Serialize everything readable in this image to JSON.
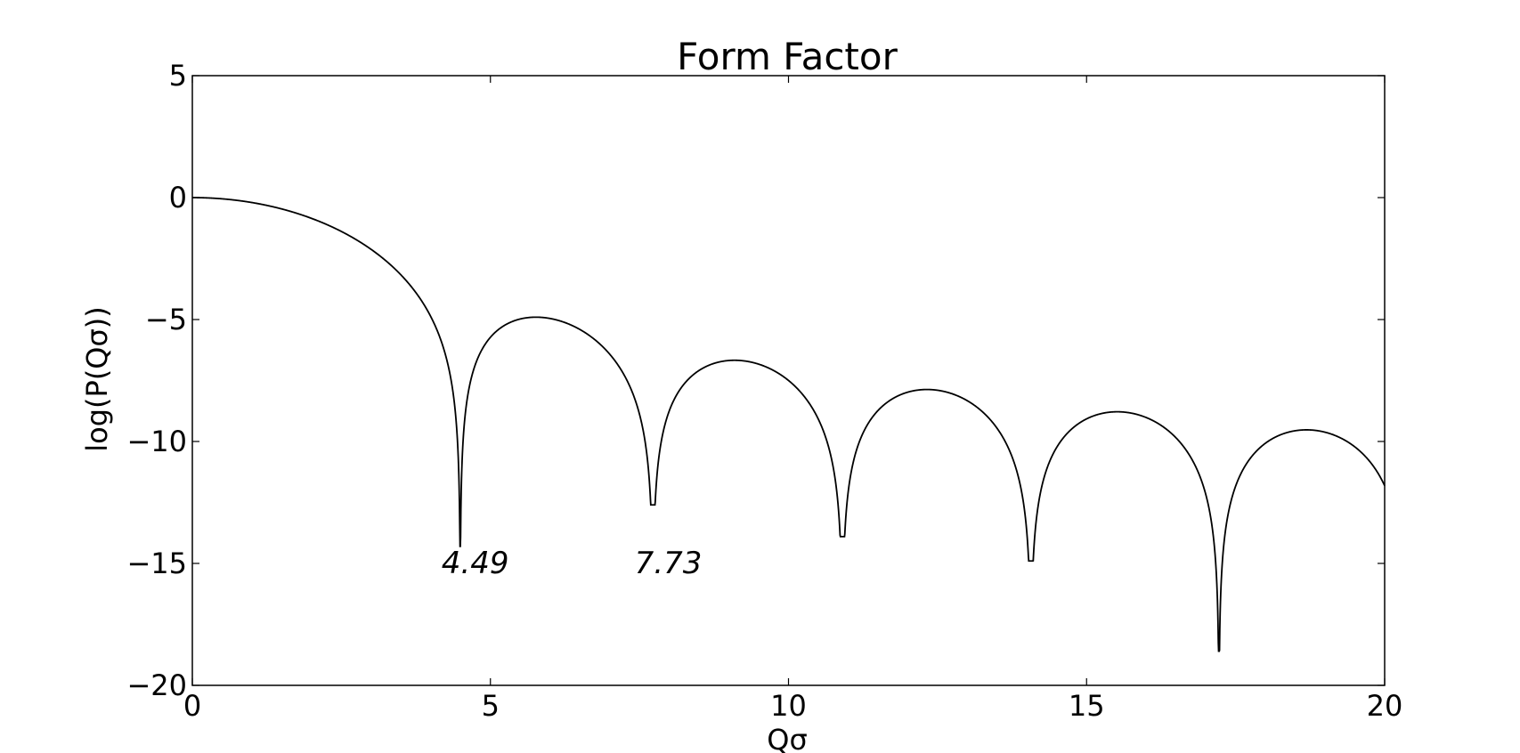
{
  "chart_data": {
    "type": "line",
    "title": "Form Factor",
    "xlabel": "Qσ",
    "ylabel": "log(P(Qσ))",
    "xlim": [
      0,
      20
    ],
    "ylim": [
      -20,
      5
    ],
    "grid": false,
    "xticks": [
      0,
      5,
      10,
      15,
      20
    ],
    "xtick_labels": [
      "0",
      "5",
      "10",
      "15",
      "20"
    ],
    "yticks": [
      5,
      0,
      -5,
      -10,
      -15,
      -20
    ],
    "ytick_labels": [
      "5",
      "0",
      "−5",
      "−10",
      "−15",
      "−20"
    ],
    "series": [
      {
        "function": "log(9 * (sin(x) - x*cos(x))^2 / x^6)",
        "x_range": [
          0,
          20
        ],
        "color": "#000000",
        "minima": [
          {
            "x": 4.49,
            "y": -14.3
          },
          {
            "x": 7.73,
            "y": -12.6
          },
          {
            "x": 10.9,
            "y": -13.9
          },
          {
            "x": 14.07,
            "y": -14.9
          },
          {
            "x": 17.22,
            "y": -18.6
          }
        ]
      }
    ],
    "annotations": [
      {
        "text": "4.49",
        "x": 4.49,
        "y": -15
      },
      {
        "text": "7.73",
        "x": 7.73,
        "y": -15
      }
    ]
  }
}
